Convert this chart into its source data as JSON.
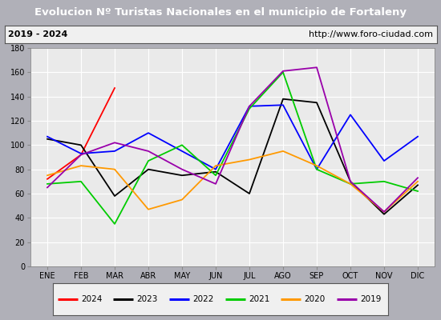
{
  "title": "Evolucion Nº Turistas Nacionales en el municipio de Fortaleny",
  "subtitle_left": "2019 - 2024",
  "subtitle_right": "http://www.foro-ciudad.com",
  "months": [
    "ENE",
    "FEB",
    "MAR",
    "ABR",
    "MAY",
    "JUN",
    "JUL",
    "AGO",
    "SEP",
    "OCT",
    "NOV",
    "DIC"
  ],
  "series": {
    "2024": [
      72,
      92,
      147,
      null,
      null,
      null,
      null,
      null,
      null,
      null,
      null,
      null
    ],
    "2023": [
      105,
      100,
      58,
      80,
      75,
      78,
      60,
      138,
      135,
      70,
      43,
      67
    ],
    "2022": [
      107,
      93,
      95,
      110,
      95,
      80,
      132,
      133,
      80,
      125,
      87,
      107
    ],
    "2021": [
      68,
      70,
      35,
      87,
      100,
      75,
      130,
      160,
      80,
      68,
      70,
      62
    ],
    "2020": [
      75,
      83,
      80,
      47,
      55,
      83,
      88,
      95,
      83,
      68,
      45,
      70
    ],
    "2019": [
      65,
      92,
      102,
      95,
      80,
      68,
      132,
      161,
      164,
      70,
      45,
      73
    ]
  },
  "colors": {
    "2024": "#ff0000",
    "2023": "#000000",
    "2022": "#0000ff",
    "2021": "#00cc00",
    "2020": "#ff9900",
    "2019": "#9900aa"
  },
  "ylim": [
    0,
    180
  ],
  "yticks": [
    0,
    20,
    40,
    60,
    80,
    100,
    120,
    140,
    160,
    180
  ],
  "outer_bg": "#b0b0b8",
  "plot_bg_color": "#eaeaea",
  "subtitle_bg": "#f0f0f0",
  "legend_bg": "#f0f0f0",
  "title_bg_color": "#5588cc",
  "title_color": "#ffffff",
  "grid_color": "#ffffff",
  "linewidth": 1.3,
  "years_order": [
    "2024",
    "2023",
    "2022",
    "2021",
    "2020",
    "2019"
  ]
}
